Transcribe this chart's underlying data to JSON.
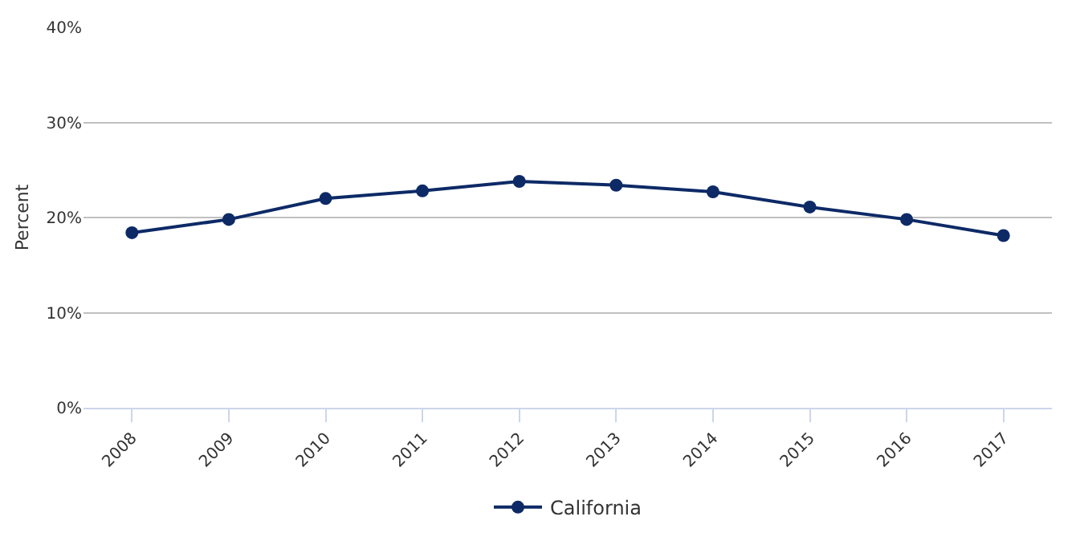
{
  "chart_data": {
    "type": "line",
    "ylabel": "Percent",
    "categories": [
      "2008",
      "2009",
      "2010",
      "2011",
      "2012",
      "2013",
      "2014",
      "2015",
      "2016",
      "2017"
    ],
    "series": [
      {
        "name": "California",
        "color": "#0d2a66",
        "values": [
          18.4,
          19.8,
          22.0,
          22.8,
          23.8,
          23.4,
          22.7,
          21.1,
          19.8,
          18.1
        ]
      }
    ],
    "ylim": [
      0,
      40
    ],
    "yticks": [
      {
        "value": 0,
        "label": "0%"
      },
      {
        "value": 10,
        "label": "10%"
      },
      {
        "value": 20,
        "label": "20%"
      },
      {
        "value": 30,
        "label": "30%"
      },
      {
        "value": 40,
        "label": "40%"
      }
    ],
    "grid": "y",
    "legend": "bottom",
    "marker": "circle",
    "line_style": "solid"
  }
}
